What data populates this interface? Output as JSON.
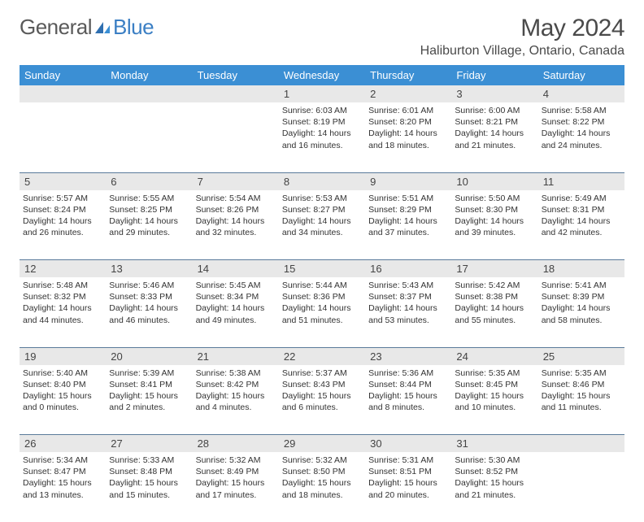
{
  "logo": {
    "general": "General",
    "blue": "Blue"
  },
  "title": "May 2024",
  "location": "Haliburton Village, Ontario, Canada",
  "colors": {
    "header_bg": "#3b8fd4",
    "header_text": "#ffffff",
    "daynum_bg": "#e8e8e8",
    "border": "#5a7a9a",
    "logo_gray": "#5a5a5a",
    "logo_blue": "#3b7fc4",
    "text": "#333333"
  },
  "weekdays": [
    "Sunday",
    "Monday",
    "Tuesday",
    "Wednesday",
    "Thursday",
    "Friday",
    "Saturday"
  ],
  "weeks": [
    {
      "nums": [
        "",
        "",
        "",
        "1",
        "2",
        "3",
        "4"
      ],
      "cells": [
        null,
        null,
        null,
        {
          "sunrise": "6:03 AM",
          "sunset": "8:19 PM",
          "dl_h": 14,
          "dl_m": 16
        },
        {
          "sunrise": "6:01 AM",
          "sunset": "8:20 PM",
          "dl_h": 14,
          "dl_m": 18
        },
        {
          "sunrise": "6:00 AM",
          "sunset": "8:21 PM",
          "dl_h": 14,
          "dl_m": 21
        },
        {
          "sunrise": "5:58 AM",
          "sunset": "8:22 PM",
          "dl_h": 14,
          "dl_m": 24
        }
      ]
    },
    {
      "nums": [
        "5",
        "6",
        "7",
        "8",
        "9",
        "10",
        "11"
      ],
      "cells": [
        {
          "sunrise": "5:57 AM",
          "sunset": "8:24 PM",
          "dl_h": 14,
          "dl_m": 26
        },
        {
          "sunrise": "5:55 AM",
          "sunset": "8:25 PM",
          "dl_h": 14,
          "dl_m": 29
        },
        {
          "sunrise": "5:54 AM",
          "sunset": "8:26 PM",
          "dl_h": 14,
          "dl_m": 32
        },
        {
          "sunrise": "5:53 AM",
          "sunset": "8:27 PM",
          "dl_h": 14,
          "dl_m": 34
        },
        {
          "sunrise": "5:51 AM",
          "sunset": "8:29 PM",
          "dl_h": 14,
          "dl_m": 37
        },
        {
          "sunrise": "5:50 AM",
          "sunset": "8:30 PM",
          "dl_h": 14,
          "dl_m": 39
        },
        {
          "sunrise": "5:49 AM",
          "sunset": "8:31 PM",
          "dl_h": 14,
          "dl_m": 42
        }
      ]
    },
    {
      "nums": [
        "12",
        "13",
        "14",
        "15",
        "16",
        "17",
        "18"
      ],
      "cells": [
        {
          "sunrise": "5:48 AM",
          "sunset": "8:32 PM",
          "dl_h": 14,
          "dl_m": 44
        },
        {
          "sunrise": "5:46 AM",
          "sunset": "8:33 PM",
          "dl_h": 14,
          "dl_m": 46
        },
        {
          "sunrise": "5:45 AM",
          "sunset": "8:34 PM",
          "dl_h": 14,
          "dl_m": 49
        },
        {
          "sunrise": "5:44 AM",
          "sunset": "8:36 PM",
          "dl_h": 14,
          "dl_m": 51
        },
        {
          "sunrise": "5:43 AM",
          "sunset": "8:37 PM",
          "dl_h": 14,
          "dl_m": 53
        },
        {
          "sunrise": "5:42 AM",
          "sunset": "8:38 PM",
          "dl_h": 14,
          "dl_m": 55
        },
        {
          "sunrise": "5:41 AM",
          "sunset": "8:39 PM",
          "dl_h": 14,
          "dl_m": 58
        }
      ]
    },
    {
      "nums": [
        "19",
        "20",
        "21",
        "22",
        "23",
        "24",
        "25"
      ],
      "cells": [
        {
          "sunrise": "5:40 AM",
          "sunset": "8:40 PM",
          "dl_h": 15,
          "dl_m": 0
        },
        {
          "sunrise": "5:39 AM",
          "sunset": "8:41 PM",
          "dl_h": 15,
          "dl_m": 2
        },
        {
          "sunrise": "5:38 AM",
          "sunset": "8:42 PM",
          "dl_h": 15,
          "dl_m": 4
        },
        {
          "sunrise": "5:37 AM",
          "sunset": "8:43 PM",
          "dl_h": 15,
          "dl_m": 6
        },
        {
          "sunrise": "5:36 AM",
          "sunset": "8:44 PM",
          "dl_h": 15,
          "dl_m": 8
        },
        {
          "sunrise": "5:35 AM",
          "sunset": "8:45 PM",
          "dl_h": 15,
          "dl_m": 10
        },
        {
          "sunrise": "5:35 AM",
          "sunset": "8:46 PM",
          "dl_h": 15,
          "dl_m": 11
        }
      ]
    },
    {
      "nums": [
        "26",
        "27",
        "28",
        "29",
        "30",
        "31",
        ""
      ],
      "cells": [
        {
          "sunrise": "5:34 AM",
          "sunset": "8:47 PM",
          "dl_h": 15,
          "dl_m": 13
        },
        {
          "sunrise": "5:33 AM",
          "sunset": "8:48 PM",
          "dl_h": 15,
          "dl_m": 15
        },
        {
          "sunrise": "5:32 AM",
          "sunset": "8:49 PM",
          "dl_h": 15,
          "dl_m": 17
        },
        {
          "sunrise": "5:32 AM",
          "sunset": "8:50 PM",
          "dl_h": 15,
          "dl_m": 18
        },
        {
          "sunrise": "5:31 AM",
          "sunset": "8:51 PM",
          "dl_h": 15,
          "dl_m": 20
        },
        {
          "sunrise": "5:30 AM",
          "sunset": "8:52 PM",
          "dl_h": 15,
          "dl_m": 21
        },
        null
      ]
    }
  ]
}
